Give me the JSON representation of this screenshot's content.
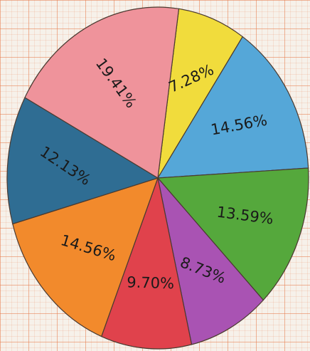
{
  "chart_data": {
    "type": "pie",
    "values": [
      7.28,
      14.56,
      13.59,
      8.73,
      9.7,
      14.56,
      12.13,
      19.41
    ],
    "value_labels": [
      "7.28%",
      "14.56%",
      "13.59%",
      "8.73%",
      "9.70%",
      "14.56%",
      "12.13%",
      "19.41%"
    ],
    "colors": [
      "#f1dc3c",
      "#55a7d8",
      "#55a83c",
      "#a953b3",
      "#e0424c",
      "#f28a2c",
      "#2f6d93",
      "#ef939b"
    ]
  }
}
